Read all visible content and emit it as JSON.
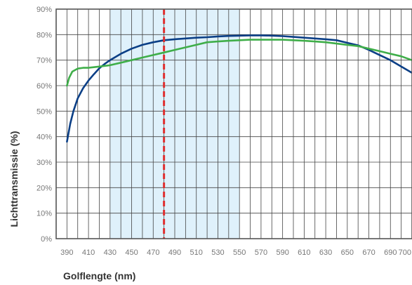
{
  "chart_data": {
    "type": "line",
    "title": "",
    "xlabel": "Golflengte (nm)",
    "ylabel": "Lichttransmissie (%)",
    "xlim": [
      380,
      710
    ],
    "ylim": [
      0,
      90
    ],
    "x_ticks": [
      "390",
      "410",
      "430",
      "450",
      "470",
      "490",
      "510",
      "530",
      "550",
      "570",
      "590",
      "610",
      "630",
      "650",
      "670",
      "690",
      "700"
    ],
    "x_tick_values": [
      390,
      410,
      430,
      450,
      470,
      490,
      510,
      530,
      550,
      570,
      590,
      610,
      630,
      650,
      670,
      690,
      700
    ],
    "y_ticks": [
      "0%",
      "10%",
      "20%",
      "30%",
      "40%",
      "50%",
      "60%",
      "70%",
      "80%",
      "90%"
    ],
    "y_tick_values": [
      0,
      10,
      20,
      30,
      40,
      50,
      60,
      70,
      80,
      90
    ],
    "grid": true,
    "shaded_band": {
      "x_start": 430,
      "x_end": 550,
      "color": "#dff1fb"
    },
    "reference_line": {
      "x": 480,
      "color": "#e02f2f",
      "style": "dashed"
    },
    "series": [
      {
        "color": "#0b3f86",
        "x": [
          390,
          393,
          396,
          400,
          405,
          410,
          415,
          420,
          425,
          430,
          440,
          450,
          460,
          470,
          480,
          490,
          500,
          510,
          520,
          530,
          540,
          550,
          560,
          570,
          580,
          590,
          600,
          610,
          620,
          630,
          640,
          650,
          660,
          670,
          680,
          690,
          700,
          710
        ],
        "y": [
          38,
          45,
          50,
          55,
          59,
          62,
          64.5,
          66.8,
          68.5,
          70,
          72.5,
          74.5,
          76,
          77,
          77.8,
          78.2,
          78.5,
          78.8,
          79,
          79.3,
          79.5,
          79.6,
          79.7,
          79.7,
          79.6,
          79.4,
          79.1,
          78.8,
          78.5,
          78.2,
          77.8,
          76.8,
          75.8,
          74,
          72,
          70,
          67.5,
          65
        ]
      },
      {
        "color": "#3fae49",
        "x": [
          390,
          392,
          395,
          400,
          405,
          410,
          420,
          430,
          440,
          450,
          460,
          470,
          480,
          490,
          500,
          510,
          520,
          530,
          540,
          550,
          560,
          570,
          580,
          590,
          600,
          610,
          620,
          630,
          640,
          650,
          660,
          670,
          680,
          690,
          700,
          710
        ],
        "y": [
          60,
          63,
          65.5,
          66.7,
          67,
          67,
          67.5,
          68,
          69,
          70,
          71,
          72,
          73,
          74,
          75,
          76,
          77,
          77.3,
          77.6,
          77.8,
          78,
          78,
          78,
          78,
          77.8,
          77.6,
          77.3,
          77,
          76.5,
          76,
          75.5,
          74.5,
          73.5,
          72.5,
          71.5,
          70
        ]
      }
    ]
  }
}
